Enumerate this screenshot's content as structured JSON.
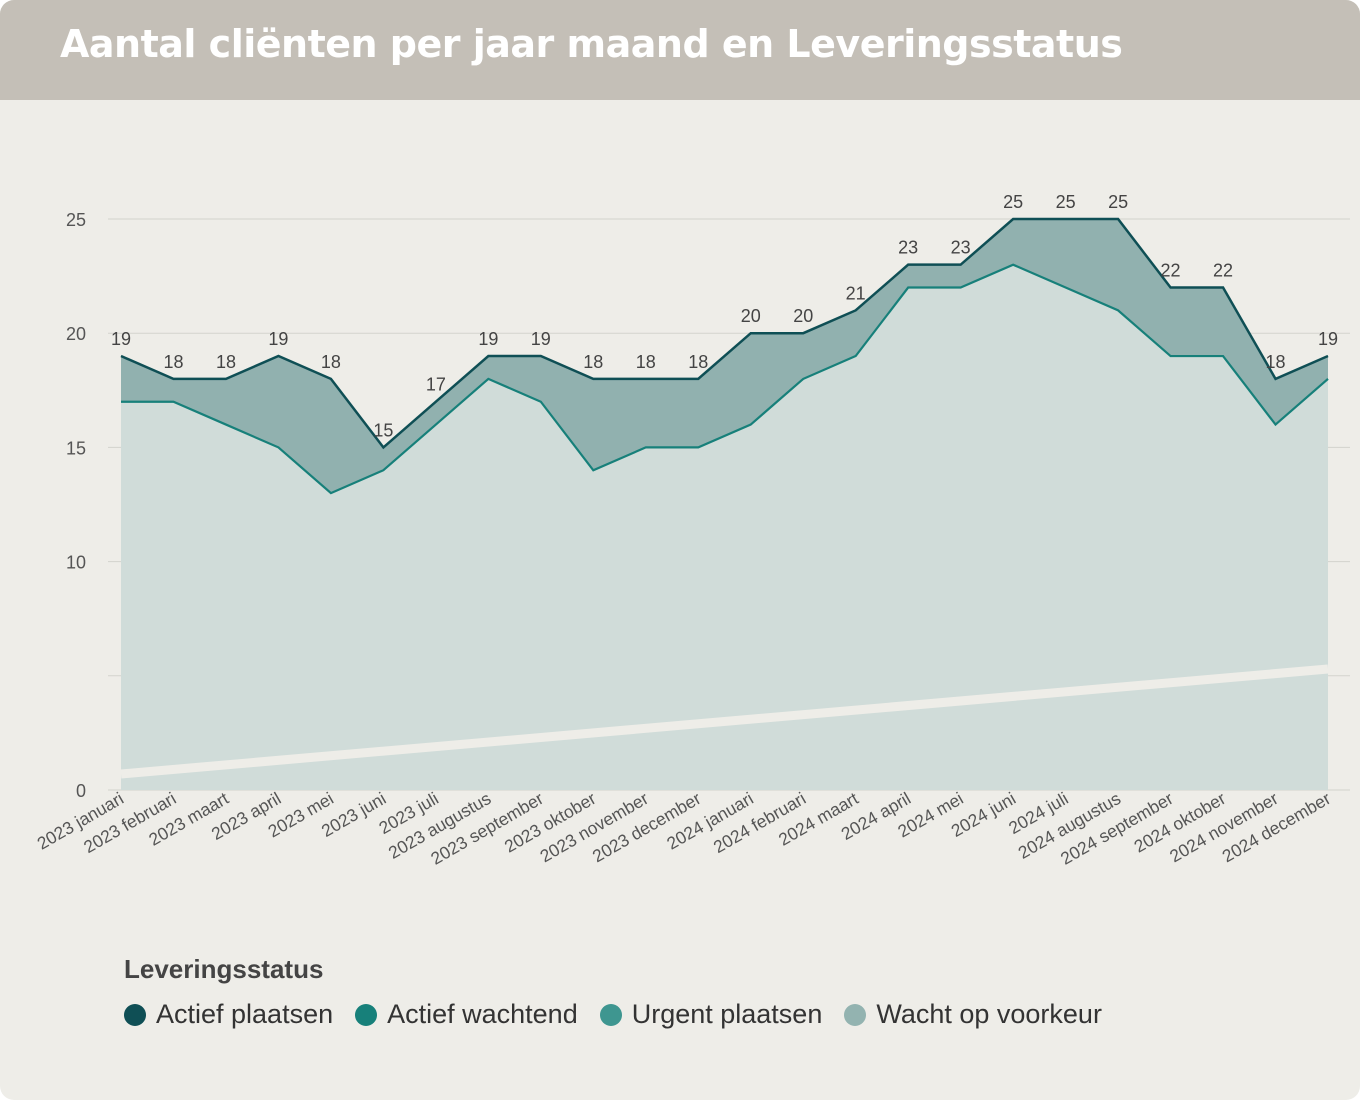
{
  "page": {
    "title": "Aantal cliënten per jaar maand en Leveringsstatus"
  },
  "colors": {
    "header_bg": "#c4bfb7",
    "card_bg": "#eeede8",
    "actief_plaatsen": "#0f4f55",
    "actief_wachtend": "#17807a",
    "urgent_plaatsen": "#3e9690",
    "wacht_op_voorkeur": "#93b3b0",
    "fill_top": "#91b1af",
    "fill_bottom": "#d0dcd9"
  },
  "chart_data": {
    "type": "area",
    "categories": [
      "2023 januari",
      "2023 februari",
      "2023 maart",
      "2023 april",
      "2023 mei",
      "2023 juni",
      "2023 juli",
      "2023 augustus",
      "2023 september",
      "2023 oktober",
      "2023 november",
      "2023 december",
      "2024 januari",
      "2024 februari",
      "2024 maart",
      "2024 april",
      "2024 mei",
      "2024 juni",
      "2024 juli",
      "2024 augustus",
      "2024 september",
      "2024 oktober",
      "2024 november",
      "2024 december"
    ],
    "totals": [
      19,
      18,
      18,
      19,
      18,
      15,
      17,
      19,
      19,
      18,
      18,
      18,
      20,
      20,
      21,
      23,
      23,
      25,
      25,
      25,
      22,
      22,
      18,
      19
    ],
    "lower": [
      17,
      17,
      16,
      15,
      13,
      14,
      16,
      18,
      17,
      14,
      15,
      15,
      16,
      18,
      19,
      22,
      22,
      23,
      22,
      21,
      19,
      19,
      16,
      18
    ],
    "yticks": [
      0,
      5,
      10,
      15,
      20,
      25
    ],
    "ytick_labels": [
      "0",
      "",
      "10",
      "15",
      "20",
      "25"
    ],
    "ylim": [
      0,
      25
    ],
    "grid": true,
    "legend_position": "bottom",
    "legend_title": "Leveringsstatus",
    "legend": [
      {
        "label": "Actief plaatsen",
        "color": "#0f4f55"
      },
      {
        "label": "Actief wachtend",
        "color": "#17807a"
      },
      {
        "label": "Urgent plaatsen",
        "color": "#3e9690"
      },
      {
        "label": "Wacht op voorkeur",
        "color": "#93b3b0"
      }
    ]
  }
}
